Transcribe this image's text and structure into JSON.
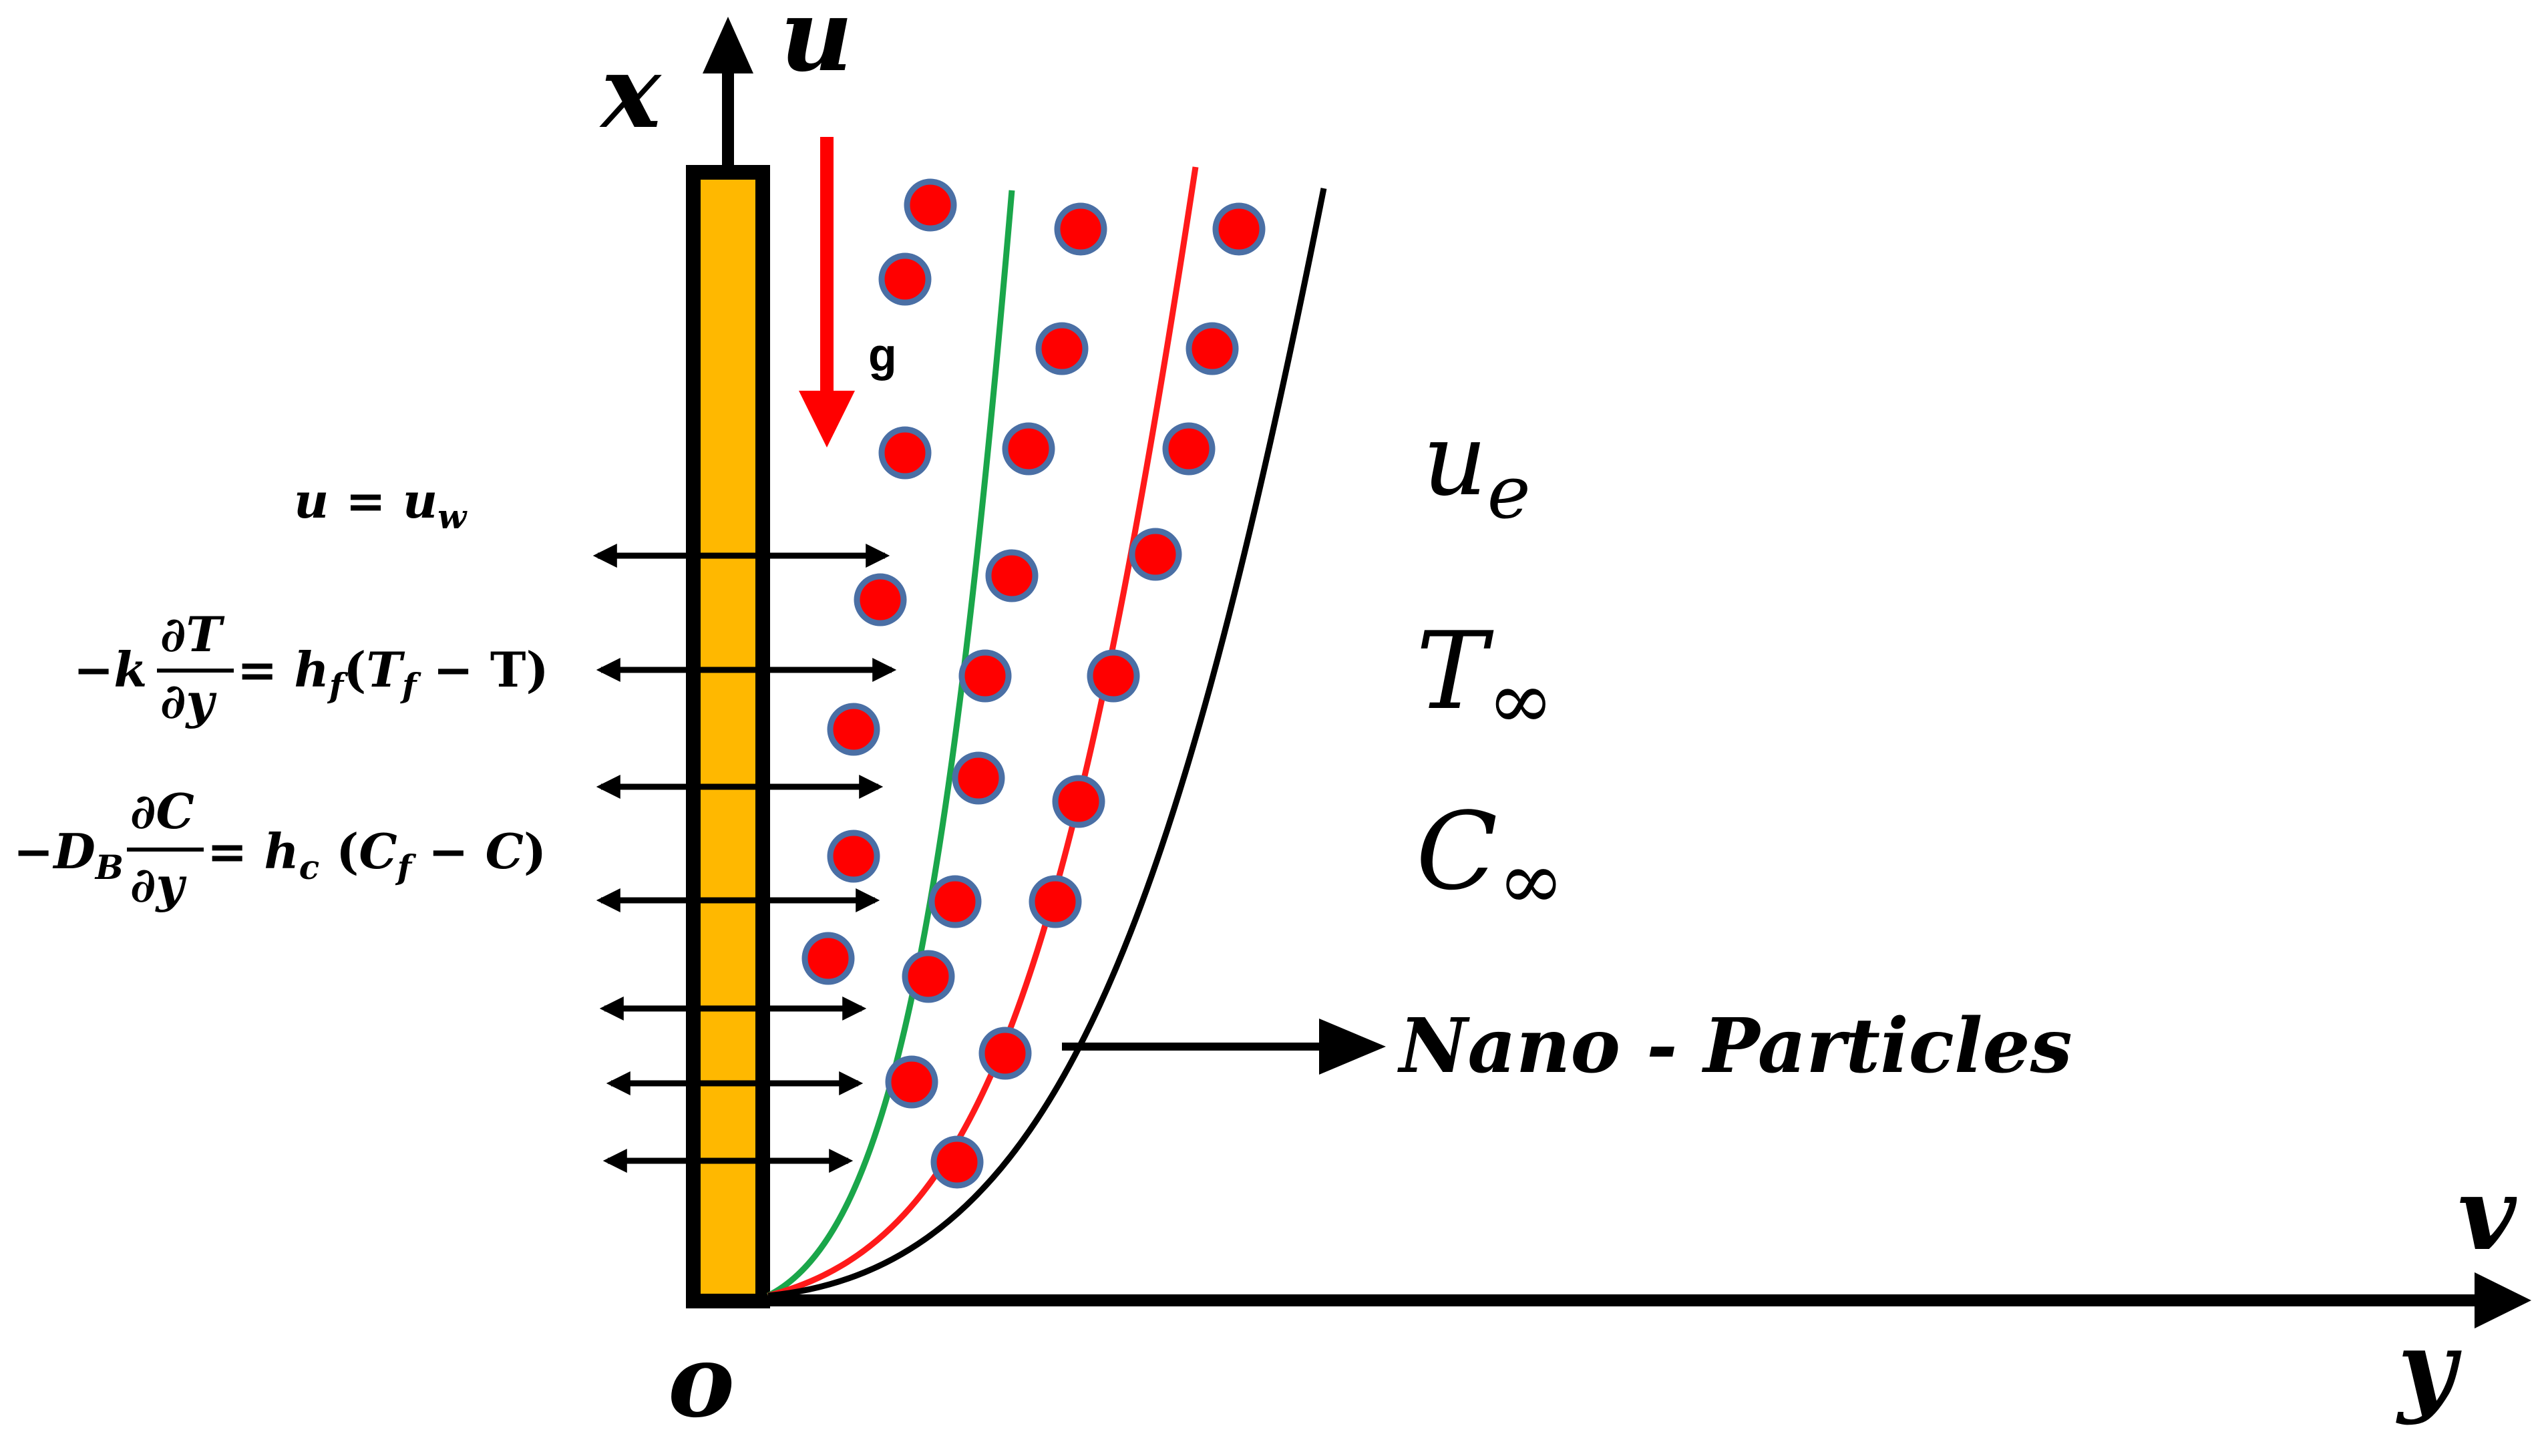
{
  "axes": {
    "x_label": "x",
    "u_label": "u",
    "y_label": "y",
    "v_label": "v",
    "origin_label": "o"
  },
  "gravity": {
    "label": "g",
    "color": "#ff0000"
  },
  "boundary_conditions": {
    "velocity": {
      "lhs": "u",
      "eq": " = ",
      "rhs": "u",
      "rhs_sub": "w"
    },
    "thermal": {
      "prefix": "−k",
      "frac_num": "∂T",
      "frac_den": "∂y",
      "eq": " = ",
      "h": "h",
      "h_sub": "f",
      "paren_open": "(",
      "Tf": "T",
      "Tf_sub": "f",
      "minus": " − ",
      "T": "T",
      "paren_close": ")"
    },
    "concentration": {
      "prefix": "−D",
      "prefix_sub": "B",
      "frac_num": "∂C",
      "frac_den": "∂y",
      "eq": " =  ",
      "h": "h",
      "h_sub": "c",
      "paren_open": " (",
      "Cf": "C",
      "Cf_sub": "f",
      "minus": " − ",
      "C": "C",
      "paren_close": ")"
    }
  },
  "free_stream": {
    "u": "u",
    "u_sub": "e",
    "T": "T",
    "T_sub": "∞",
    "C": "C",
    "C_sub": "∞"
  },
  "annotation": {
    "label": "Nano - Particles"
  },
  "colors": {
    "plate_fill": "#ffb800",
    "plate_border": "#000000",
    "curve_green": "#1aa64a",
    "curve_red": "#ff1a1a",
    "curve_black": "#000000",
    "particle_fill": "#ff0000",
    "particle_border": "#4a6fa5"
  }
}
